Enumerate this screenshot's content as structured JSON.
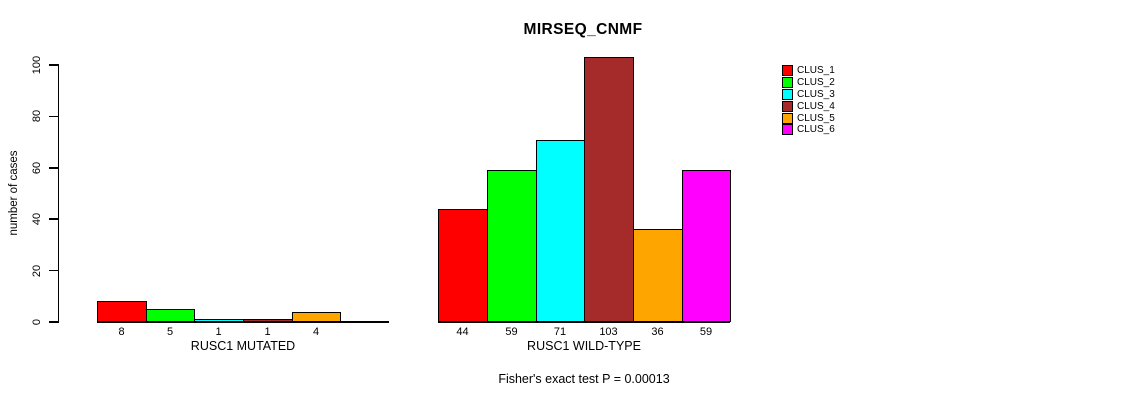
{
  "chart_data": {
    "type": "bar",
    "title": "MIRSEQ_CNMF",
    "ylabel": "number of cases",
    "ylim": [
      0,
      100
    ],
    "yticks": [
      0,
      20,
      40,
      60,
      80,
      100
    ],
    "grid": false,
    "legend_position": "right-outside",
    "clusters": [
      {
        "name": "CLUS_1",
        "color": "#FF0000"
      },
      {
        "name": "CLUS_2",
        "color": "#00FF00"
      },
      {
        "name": "CLUS_3",
        "color": "#00FFFF"
      },
      {
        "name": "CLUS_4",
        "color": "#A52A2A"
      },
      {
        "name": "CLUS_5",
        "color": "#FFA500"
      },
      {
        "name": "CLUS_6",
        "color": "#FF00FF"
      }
    ],
    "groups": [
      {
        "label": "RUSC1 MUTATED",
        "values": [
          8,
          5,
          1,
          1,
          4,
          0
        ],
        "value_labels": [
          "8",
          "5",
          "1",
          "1",
          "4",
          ""
        ]
      },
      {
        "label": "RUSC1 WILD-TYPE",
        "values": [
          44,
          59,
          71,
          103,
          36,
          59
        ],
        "value_labels": [
          "44",
          "59",
          "71",
          "103",
          "36",
          "59"
        ]
      }
    ],
    "annotation": "Fisher's exact test P = 0.00013"
  }
}
